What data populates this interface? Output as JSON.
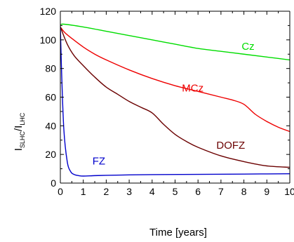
{
  "chart_data": {
    "type": "line",
    "title": "",
    "xlabel": "Time [years]",
    "ylabel": {
      "main": "I",
      "sub1": "SLHC",
      "slash": "/I",
      "sub2": "LHC"
    },
    "xlim": [
      0,
      10
    ],
    "ylim": [
      0,
      120
    ],
    "xticks": [
      0,
      1,
      2,
      3,
      4,
      5,
      6,
      7,
      8,
      9,
      10
    ],
    "yticks": [
      0,
      20,
      40,
      60,
      80,
      100,
      120
    ],
    "grid": false,
    "legend": "none",
    "series": [
      {
        "name": "Cz",
        "color": "#00dd00",
        "x": [
          0,
          0.1,
          1,
          2,
          3,
          4,
          5,
          6,
          7,
          8,
          9,
          10
        ],
        "y": [
          109,
          111,
          109,
          106,
          103,
          100,
          97,
          94,
          92,
          90,
          88,
          86
        ]
      },
      {
        "name": "MCz",
        "color": "#ee0000",
        "x": [
          0,
          0.2,
          0.5,
          1,
          1.5,
          2,
          3,
          4,
          5,
          6,
          7,
          7.5,
          8,
          8.5,
          9,
          9.5,
          10
        ],
        "y": [
          109,
          105,
          101,
          95,
          90,
          86,
          79,
          73,
          68,
          64,
          60,
          58,
          55,
          48,
          43,
          39,
          36
        ]
      },
      {
        "name": "DOFZ",
        "color": "#6b0000",
        "x": [
          0,
          0.3,
          0.6,
          1,
          1.5,
          2,
          2.5,
          3,
          3.5,
          4,
          4.5,
          5,
          5.5,
          6,
          7,
          8,
          9,
          10
        ],
        "y": [
          109,
          97,
          89,
          82,
          74,
          67,
          62,
          57,
          53,
          49,
          41,
          34,
          29,
          25,
          19,
          15,
          12,
          11
        ]
      },
      {
        "name": "FZ",
        "color": "#0000cc",
        "x": [
          0,
          0.05,
          0.15,
          0.3,
          0.45,
          0.6,
          0.8,
          1,
          1.5,
          2,
          3,
          4,
          6,
          8,
          10
        ],
        "y": [
          109,
          80,
          38,
          15,
          8,
          6,
          5.2,
          4.9,
          5.2,
          5.4,
          5.7,
          5.9,
          6.1,
          6.3,
          6.5
        ]
      }
    ],
    "annotations": [
      {
        "text": "Cz",
        "series": "Cz",
        "x": 7.9,
        "y": 93
      },
      {
        "text": "MCz",
        "series": "MCz",
        "x": 5.3,
        "y": 64
      },
      {
        "text": "DOFZ",
        "series": "DOFZ",
        "x": 6.8,
        "y": 24
      },
      {
        "text": "FZ",
        "series": "FZ",
        "x": 1.4,
        "y": 13
      }
    ]
  }
}
